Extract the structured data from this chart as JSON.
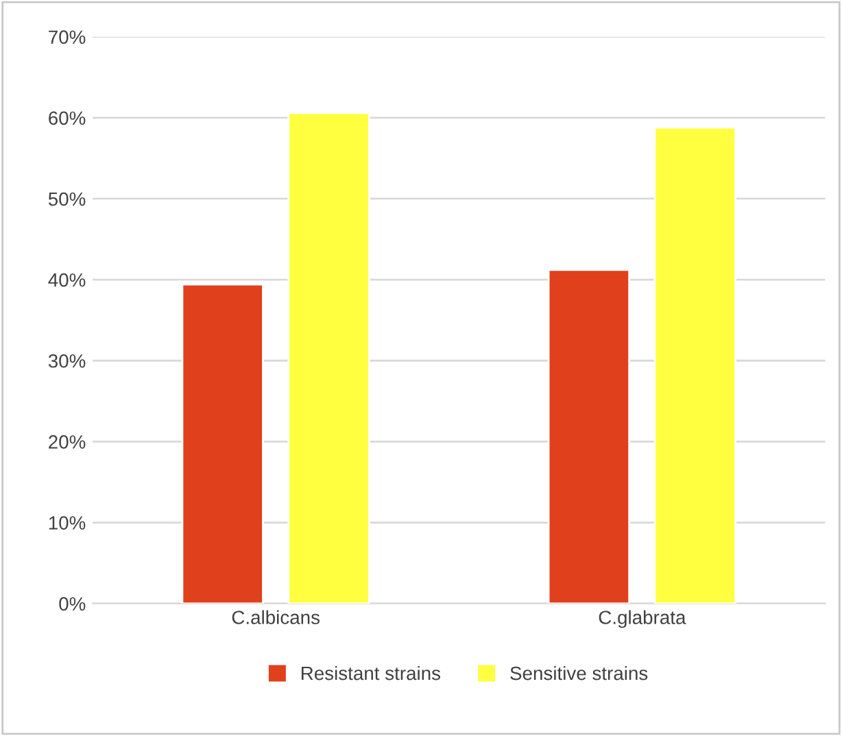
{
  "chart_data": {
    "type": "bar",
    "categories": [
      "C.albicans",
      "C.glabrata"
    ],
    "series": [
      {
        "name": "Resistant strains",
        "color": "#e0401c",
        "values": [
          39.4,
          41.2
        ]
      },
      {
        "name": "Sensitive strains",
        "color": "#ffff40",
        "values": [
          60.6,
          58.8
        ]
      }
    ],
    "ylim": [
      0,
      70
    ],
    "yticks": [
      {
        "value": 0,
        "label": "0%"
      },
      {
        "value": 10,
        "label": "10%"
      },
      {
        "value": 20,
        "label": "20%"
      },
      {
        "value": 30,
        "label": "30%"
      },
      {
        "value": 40,
        "label": "40%"
      },
      {
        "value": 50,
        "label": "50%"
      },
      {
        "value": 60,
        "label": "60%"
      },
      {
        "value": 70,
        "label": "70%"
      }
    ],
    "grid": "y",
    "legend": "bottom"
  }
}
